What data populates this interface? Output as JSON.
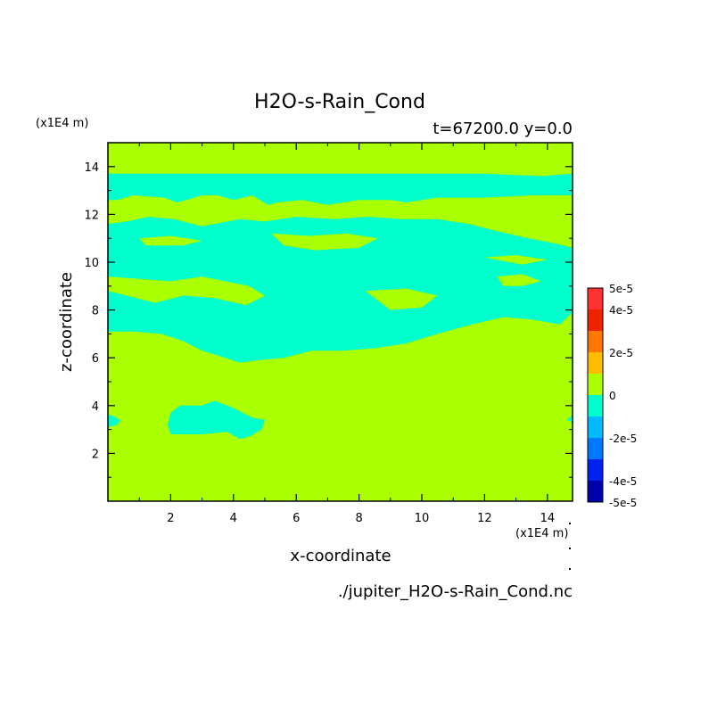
{
  "chart_data": {
    "type": "heatmap",
    "title": "H2O-s-Rain_Cond",
    "subtitle": "t=67200.0 y=0.0",
    "xlabel": "x-coordinate",
    "ylabel": "z-coordinate",
    "x_unit": "(x1E4 m)",
    "y_unit": "(x1E4 m)",
    "source_file": "./jupiter_H2O-s-Rain_Cond.nc",
    "xlim": [
      0,
      14.8
    ],
    "ylim": [
      0,
      15
    ],
    "x_ticks": [
      2,
      4,
      6,
      8,
      10,
      12,
      14
    ],
    "y_ticks": [
      2,
      4,
      6,
      8,
      10,
      12,
      14
    ],
    "colorbar": {
      "tick_labels": [
        "5e-5",
        "4e-5",
        "2e-5",
        "0",
        "-2e-5",
        "-4e-5",
        "-5e-5"
      ],
      "levels": [
        {
          "range": [
            4e-05,
            5e-05
          ],
          "color": "#ff3333"
        },
        {
          "range": [
            3e-05,
            4e-05
          ],
          "color": "#ee2200"
        },
        {
          "range": [
            2e-05,
            3e-05
          ],
          "color": "#ff7700"
        },
        {
          "range": [
            1e-05,
            2e-05
          ],
          "color": "#ffbb00"
        },
        {
          "range": [
            0,
            1e-05
          ],
          "color": "#aaff00"
        },
        {
          "range": [
            -1e-05,
            0
          ],
          "color": "#00ffcc"
        },
        {
          "range": [
            -2e-05,
            -1e-05
          ],
          "color": "#00bbff"
        },
        {
          "range": [
            -3e-05,
            -2e-05
          ],
          "color": "#0077ff"
        },
        {
          "range": [
            -4e-05,
            -3e-05
          ],
          "color": "#0022ee"
        },
        {
          "range": [
            -5e-05,
            -4e-05
          ],
          "color": "#0000aa"
        }
      ]
    },
    "background_level_color": "#aaff00",
    "regions": [
      {
        "name": "upper-negative-region",
        "level_color": "#00ffcc",
        "points": [
          [
            0,
            13.7
          ],
          [
            2,
            13.7
          ],
          [
            4,
            13.7
          ],
          [
            6,
            13.7
          ],
          [
            8,
            13.7
          ],
          [
            10,
            13.7
          ],
          [
            12,
            13.7
          ],
          [
            13.8,
            13.6
          ],
          [
            14.8,
            13.7
          ],
          [
            14.8,
            12.8
          ],
          [
            13.5,
            12.8
          ],
          [
            12,
            12.7
          ],
          [
            10.5,
            12.7
          ],
          [
            9.5,
            12.5
          ],
          [
            9,
            12.6
          ],
          [
            8,
            12.6
          ],
          [
            7,
            12.4
          ],
          [
            6.2,
            12.6
          ],
          [
            5.4,
            12.5
          ],
          [
            5.1,
            12.4
          ],
          [
            4.6,
            12.8
          ],
          [
            4,
            12.6
          ],
          [
            3.5,
            12.8
          ],
          [
            3,
            12.8
          ],
          [
            2.5,
            12.6
          ],
          [
            2.2,
            12.5
          ],
          [
            1.8,
            12.7
          ],
          [
            0.8,
            12.8
          ],
          [
            0.3,
            12.6
          ],
          [
            0,
            12.6
          ]
        ]
      },
      {
        "name": "middle-negative-region",
        "level_color": "#00ffcc",
        "points": [
          [
            0,
            11.6
          ],
          [
            0.6,
            11.7
          ],
          [
            1.3,
            11.9
          ],
          [
            2.1,
            11.8
          ],
          [
            3.0,
            11.5
          ],
          [
            4.2,
            11.8
          ],
          [
            5.0,
            11.7
          ],
          [
            6.0,
            11.9
          ],
          [
            7.2,
            11.8
          ],
          [
            8.3,
            11.9
          ],
          [
            9.4,
            11.8
          ],
          [
            10.5,
            11.8
          ],
          [
            11.5,
            11.6
          ],
          [
            12.4,
            11.3
          ],
          [
            13.4,
            11.0
          ],
          [
            14.2,
            10.8
          ],
          [
            14.8,
            10.6
          ],
          [
            14.8,
            7.9
          ],
          [
            14.4,
            7.4
          ],
          [
            13.5,
            7.6
          ],
          [
            12.6,
            7.7
          ],
          [
            11.6,
            7.4
          ],
          [
            10.5,
            7.0
          ],
          [
            9.5,
            6.6
          ],
          [
            8.5,
            6.4
          ],
          [
            7.5,
            6.3
          ],
          [
            6.5,
            6.3
          ],
          [
            5.6,
            6.0
          ],
          [
            4.8,
            5.9
          ],
          [
            4.2,
            5.8
          ],
          [
            3.5,
            6.1
          ],
          [
            3.0,
            6.3
          ],
          [
            2.4,
            6.7
          ],
          [
            1.7,
            7.0
          ],
          [
            0.8,
            7.1
          ],
          [
            0,
            7.1
          ]
        ]
      },
      {
        "name": "lower-negative-blob",
        "level_color": "#00ffcc",
        "points": [
          [
            2.0,
            3.7
          ],
          [
            2.3,
            4.0
          ],
          [
            3.0,
            4.0
          ],
          [
            3.4,
            4.2
          ],
          [
            4.0,
            3.9
          ],
          [
            4.6,
            3.5
          ],
          [
            5.0,
            3.4
          ],
          [
            4.9,
            3.0
          ],
          [
            4.5,
            2.7
          ],
          [
            4.2,
            2.6
          ],
          [
            3.8,
            2.9
          ],
          [
            3.0,
            2.8
          ],
          [
            2.0,
            2.8
          ],
          [
            1.9,
            3.2
          ]
        ]
      },
      {
        "name": "left-edge-negative-blob",
        "level_color": "#00ffcc",
        "points": [
          [
            0,
            3.1
          ],
          [
            0.3,
            3.2
          ],
          [
            0.4,
            3.4
          ],
          [
            0.1,
            3.6
          ],
          [
            0,
            3.6
          ]
        ]
      },
      {
        "name": "right-edge-negative-blob",
        "level_color": "#00ffcc",
        "points": [
          [
            14.8,
            3.3
          ],
          [
            14.6,
            3.4
          ],
          [
            14.8,
            3.6
          ]
        ]
      }
    ],
    "positive_islands": [
      {
        "name": "island-1",
        "level_color": "#aaff00",
        "points": [
          [
            1.0,
            11.0
          ],
          [
            2.0,
            11.1
          ],
          [
            3.0,
            10.9
          ],
          [
            2.4,
            10.7
          ],
          [
            1.2,
            10.7
          ]
        ]
      },
      {
        "name": "island-2",
        "level_color": "#aaff00",
        "points": [
          [
            5.2,
            11.2
          ],
          [
            6.4,
            11.1
          ],
          [
            7.6,
            11.2
          ],
          [
            8.6,
            11.0
          ],
          [
            8.0,
            10.6
          ],
          [
            6.6,
            10.5
          ],
          [
            5.6,
            10.7
          ]
        ]
      },
      {
        "name": "island-3",
        "level_color": "#aaff00",
        "points": [
          [
            0,
            9.4
          ],
          [
            1.0,
            9.3
          ],
          [
            2.0,
            9.2
          ],
          [
            3.0,
            9.4
          ],
          [
            4.5,
            9.0
          ],
          [
            5.0,
            8.6
          ],
          [
            4.4,
            8.2
          ],
          [
            3.4,
            8.5
          ],
          [
            2.4,
            8.6
          ],
          [
            1.5,
            8.3
          ],
          [
            0.6,
            8.6
          ],
          [
            0,
            8.8
          ]
        ]
      },
      {
        "name": "island-4",
        "level_color": "#aaff00",
        "points": [
          [
            8.2,
            8.8
          ],
          [
            9.5,
            8.9
          ],
          [
            10.5,
            8.6
          ],
          [
            10.0,
            8.1
          ],
          [
            9.0,
            8.0
          ]
        ]
      },
      {
        "name": "island-5",
        "level_color": "#aaff00",
        "points": [
          [
            12.4,
            9.4
          ],
          [
            13.2,
            9.5
          ],
          [
            13.8,
            9.2
          ],
          [
            13.2,
            9.0
          ],
          [
            12.6,
            9.0
          ]
        ]
      },
      {
        "name": "island-6",
        "level_color": "#aaff00",
        "points": [
          [
            12.0,
            10.2
          ],
          [
            13.0,
            10.3
          ],
          [
            14.0,
            10.1
          ],
          [
            13.2,
            9.9
          ]
        ]
      }
    ]
  }
}
